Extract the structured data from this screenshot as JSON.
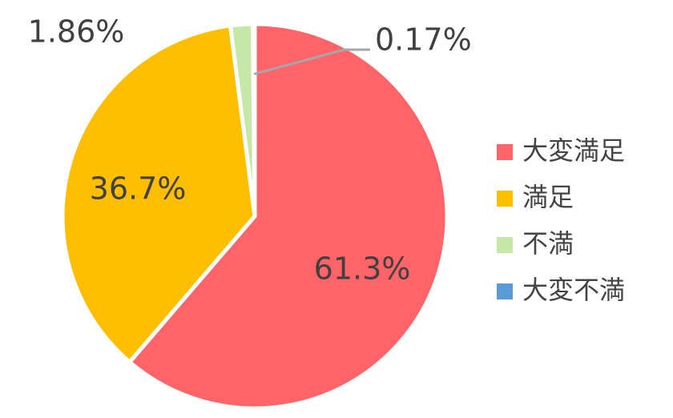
{
  "chart_data": {
    "type": "pie",
    "title": "",
    "slices": [
      {
        "label": "大変満足",
        "value": 61.3,
        "display": "61.3%",
        "color": "#FF6469"
      },
      {
        "label": "満足",
        "value": 36.7,
        "display": "36.7%",
        "color": "#FFBE00"
      },
      {
        "label": "不満",
        "value": 1.86,
        "display": "1.86%",
        "color": "#C5E8A6"
      },
      {
        "label": "大変不満",
        "value": 0.17,
        "display": "0.17%",
        "color": "#5B9BD5"
      }
    ],
    "start": "12 o'clock",
    "direction": "clockwise",
    "legend_position": "right"
  }
}
